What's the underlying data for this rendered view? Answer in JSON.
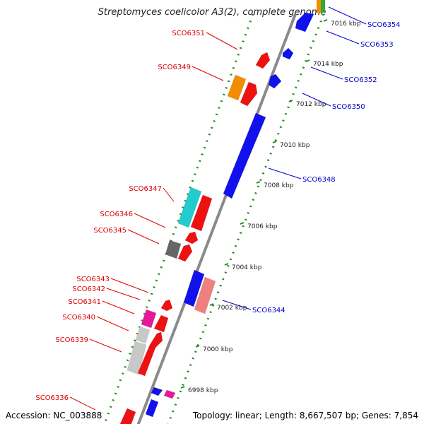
{
  "title": "Streptomyces coelicolor A3(2), complete genome",
  "footer": {
    "accession": "Accession: NC_003888",
    "summary": "Topology: linear; Length: 8,667,507 bp; Genes: 7,854"
  },
  "colors": {
    "backbone": "#8a8a8a",
    "dots": "#1f8a1f",
    "left_label": "#e00000",
    "right_label": "#0000cc",
    "red": "#ee1111",
    "blue": "#1111ee",
    "orange": "#f28c00",
    "cyan": "#22cccc",
    "magenta": "#e8189a",
    "gray": "#666666",
    "light_gray": "#c8c8c8",
    "salmon": "#f08080"
  },
  "scale_labels": [
    "7016 kbp",
    "7014 kbp",
    "7012 kbp",
    "7010 kbp",
    "7008 kbp",
    "7006 kbp",
    "7004 kbp",
    "7002 kbp",
    "7000 kbp",
    "6998 kbp"
  ],
  "right_genes": [
    "SCO6354",
    "SCO6353",
    "SCO6352",
    "SCO6350",
    "SCO6348",
    "SCO6344"
  ],
  "left_genes": [
    "SCO6351",
    "SCO6349",
    "SCO6347",
    "SCO6346",
    "SCO6345",
    "SCO6343",
    "SCO6342",
    "SCO6341",
    "SCO6340",
    "SCO6339",
    "SCO6336"
  ]
}
